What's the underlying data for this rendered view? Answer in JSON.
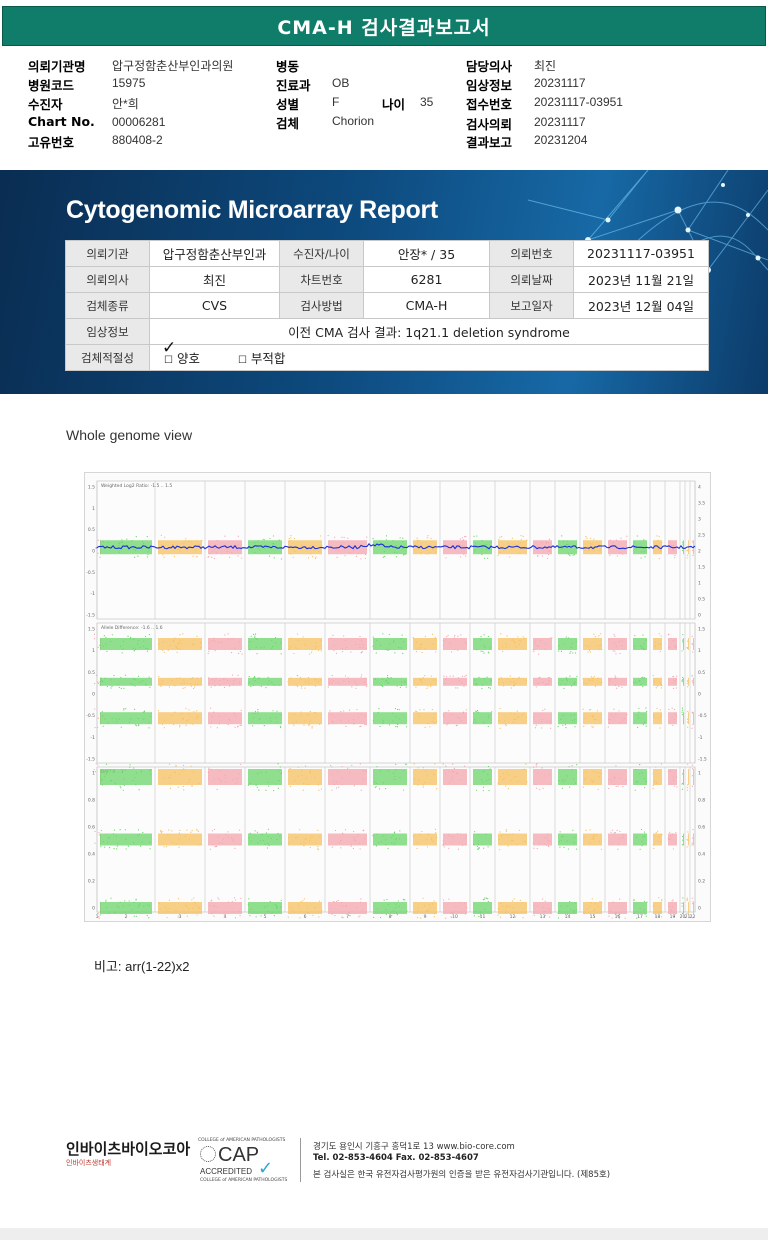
{
  "title": "CMA-H 검사결과보고서",
  "header": {
    "rows": [
      [
        {
          "label": "의뢰기관명",
          "value": "압구정함춘산부인과의원"
        },
        {
          "label": "병동",
          "value": ""
        },
        {
          "label": "담당의사",
          "value": "최진"
        }
      ],
      [
        {
          "label": "병원코드",
          "value": "15975"
        },
        {
          "label": "진료과",
          "value": "OB"
        },
        {
          "label": "임상정보",
          "value": "20231117"
        }
      ],
      [
        {
          "label": "수진자",
          "value": "안*희"
        },
        {
          "label": "성별",
          "value": "F"
        },
        {
          "label": "접수번호",
          "value": "20231117-03951"
        }
      ],
      [
        {
          "label": "Chart No.",
          "value": "00006281"
        },
        {
          "label": "검체",
          "value": "Chorion"
        },
        {
          "label": "검사의뢰",
          "value": "20231117"
        }
      ],
      [
        {
          "label": "고유번호",
          "value": "880408-2"
        },
        {
          "label": "",
          "value": ""
        },
        {
          "label": "결과보고",
          "value": "20231204"
        }
      ]
    ],
    "age_label": "나이",
    "age_value": "35"
  },
  "report": {
    "title": "Cytogenomic Microarray Report",
    "table": {
      "r1": {
        "k1": "의뢰기관",
        "v1": "압구정함춘산부인과",
        "k2": "수진자/나이",
        "v2": "안장* / 35",
        "k3": "의뢰번호",
        "v3": "20231117-03951"
      },
      "r2": {
        "k1": "의뢰의사",
        "v1": "최진",
        "k2": "차트번호",
        "v2": "6281",
        "k3": "의뢰날짜",
        "v3": "2023년 11월 21일"
      },
      "r3": {
        "k1": "검체종류",
        "v1": "CVS",
        "k2": "검사방법",
        "v2": "CMA-H",
        "k3": "보고일자",
        "v3": "2023년 12월 04일"
      },
      "r4": {
        "k1": "임상정보",
        "v1": "이전 CMA 검사 결과: 1q21.1 deletion syndrome"
      },
      "r5": {
        "k1": "검체적절성",
        "opt1": "양호",
        "opt2": "부적합"
      }
    }
  },
  "section_title": "Whole genome view",
  "plot": {
    "panel1_label": "Weighted Log2 Ratio: -1.5 .. 1.5",
    "panel2_label": "Allele Difference: -1.6 .. 1.6",
    "panel3_label": "BAF: 0 .. 1",
    "p1_left_ticks": [
      "1.5",
      "1",
      "0.5",
      "0",
      "-0.5",
      "-1",
      "-1.5"
    ],
    "p1_right_ticks": [
      "4",
      "3.5",
      "3",
      "2.5",
      "2",
      "1.5",
      "1",
      "0.5",
      "0"
    ],
    "p2_left_ticks": [
      "1.5",
      "1",
      "0.5",
      "0",
      "-0.5",
      "-1",
      "-1.5"
    ],
    "p2_right_ticks": [
      "1.5",
      "1",
      "0.5",
      "0",
      "-0.5",
      "-1",
      "-1.5"
    ],
    "p3_left_ticks": [
      "1",
      "0.8",
      "0.6",
      "0.4",
      "0.2",
      "0"
    ],
    "p3_right_ticks": [
      "1",
      "0.8",
      "0.6",
      "0.4",
      "0.2",
      "0"
    ],
    "chromosomes": [
      "1",
      "2",
      "3",
      "4",
      "5",
      "6",
      "7",
      "8",
      "9",
      "10",
      "11",
      "12",
      "13",
      "14",
      "15",
      "16",
      "17",
      "18",
      "19",
      "20",
      "21",
      "22"
    ],
    "colors": {
      "pink": "#f4a6ae",
      "green": "#6bd66b",
      "orange": "#f5c060",
      "line": "#1a2fd6"
    }
  },
  "note": "비고: arr(1-22)x2",
  "footer": {
    "logo": "인바이츠바이오코아",
    "logo_sub": "인바이츠생태계",
    "cap_top": "COLLEGE of AMERICAN PATHOLOGISTS",
    "cap_word": "CAP",
    "cap_acc": "ACCREDITED",
    "cap_bot": "COLLEGE of AMERICAN PATHOLOGISTS",
    "address": "경기도 용인시 기흥구 흥덕1로 13   www.bio-core.com",
    "tel": "Tel. 02-853-4604   Fax. 02-853-4607",
    "cert": "본 검사실은 한국 유전자검사평가원의 인증을 받은 유전자검사기관입니다. (제85호)"
  }
}
